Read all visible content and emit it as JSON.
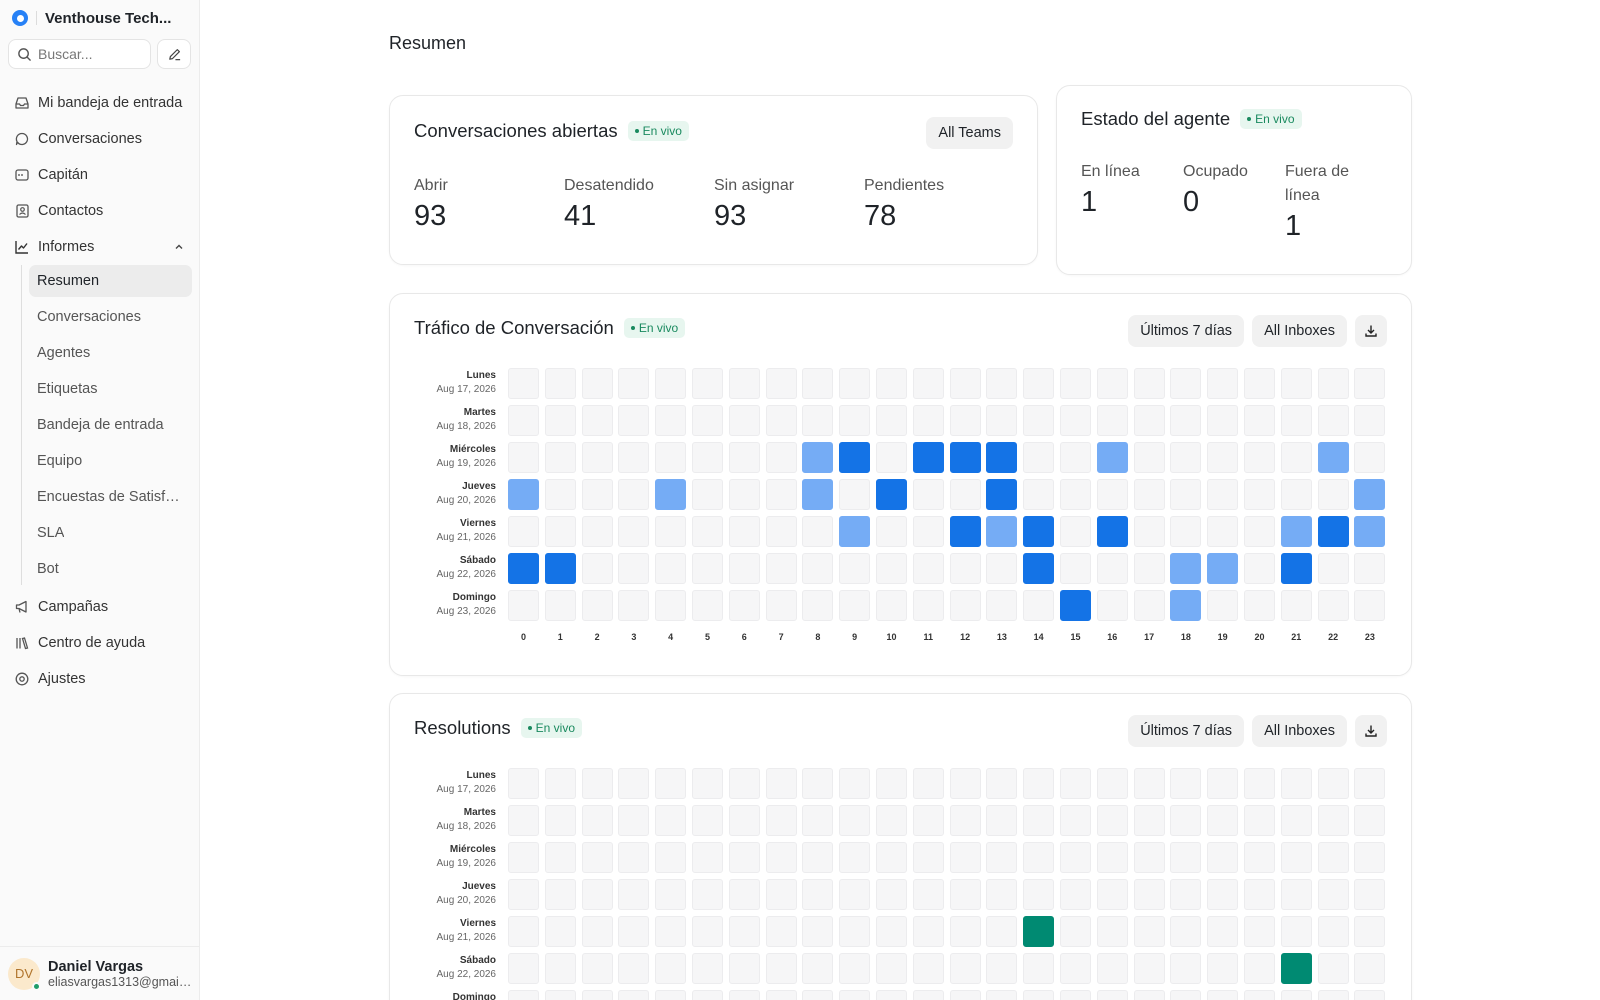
{
  "workspace": {
    "name": "Venthouse Tech..."
  },
  "search": {
    "placeholder": "Buscar..."
  },
  "nav": {
    "items": [
      {
        "label": "Mi bandeja de entrada",
        "icon": "inbox-icon"
      },
      {
        "label": "Conversaciones",
        "icon": "chat-bubble-icon"
      },
      {
        "label": "Capitán",
        "icon": "captain-icon"
      },
      {
        "label": "Contactos",
        "icon": "contact-book-icon"
      },
      {
        "label": "Informes",
        "icon": "chart-line-icon"
      }
    ],
    "reports_sub": [
      "Resumen",
      "Conversaciones",
      "Agentes",
      "Etiquetas",
      "Bandeja de entrada",
      "Equipo",
      "Encuestas de Satisfacción",
      "SLA",
      "Bot"
    ],
    "reports_active": "Resumen",
    "bottom_items": [
      {
        "label": "Campañas",
        "icon": "megaphone-icon"
      },
      {
        "label": "Centro de ayuda",
        "icon": "library-icon"
      },
      {
        "label": "Ajustes",
        "icon": "settings-icon"
      }
    ]
  },
  "profile": {
    "initials": "DV",
    "name": "Daniel Vargas",
    "email": "eliasvargas1313@gmail.com"
  },
  "page": {
    "title": "Resumen"
  },
  "live_label": "En vivo",
  "open_conversations": {
    "title": "Conversaciones abiertas",
    "filter": "All Teams",
    "metrics": [
      {
        "label": "Abrir",
        "value": "93"
      },
      {
        "label": "Desatendido",
        "value": "41"
      },
      {
        "label": "Sin asignar",
        "value": "93"
      },
      {
        "label": "Pendientes",
        "value": "78"
      }
    ]
  },
  "agent_status": {
    "title": "Estado del agente",
    "metrics": [
      {
        "label": "En línea",
        "value": "1"
      },
      {
        "label": "Ocupado",
        "value": "0"
      },
      {
        "label": "Fuera de línea",
        "value": "1"
      }
    ]
  },
  "traffic": {
    "title": "Tráfico de Conversación",
    "range": "Últimos 7 días",
    "inbox": "All Inboxes"
  },
  "resolutions": {
    "title": "Resolutions",
    "range": "Últimos 7 días",
    "inbox": "All Inboxes"
  },
  "colors": {
    "accent": "#2781f6",
    "live_green": "#1a8a5f",
    "traffic_light": "#75acf5",
    "traffic_dark": "#1473e6",
    "resolution_dark": "#008a72",
    "empty_cell": "#f6f6f7"
  },
  "chart_data": [
    {
      "type": "heatmap",
      "title": "Tráfico de Conversación",
      "rows": [
        {
          "day": "Lunes",
          "date": "Aug 17, 2026"
        },
        {
          "day": "Martes",
          "date": "Aug 18, 2026"
        },
        {
          "day": "Miércoles",
          "date": "Aug 19, 2026"
        },
        {
          "day": "Jueves",
          "date": "Aug 20, 2026"
        },
        {
          "day": "Viernes",
          "date": "Aug 21, 2026"
        },
        {
          "day": "Sábado",
          "date": "Aug 22, 2026"
        },
        {
          "day": "Domingo",
          "date": "Aug 23, 2026"
        }
      ],
      "hours": [
        "0",
        "1",
        "2",
        "3",
        "4",
        "5",
        "6",
        "7",
        "8",
        "9",
        "10",
        "11",
        "12",
        "13",
        "14",
        "15",
        "16",
        "17",
        "18",
        "19",
        "20",
        "21",
        "22",
        "23"
      ],
      "levels": [
        [
          0,
          0,
          0,
          0,
          0,
          0,
          0,
          0,
          0,
          0,
          0,
          0,
          0,
          0,
          0,
          0,
          0,
          0,
          0,
          0,
          0,
          0,
          0,
          0
        ],
        [
          0,
          0,
          0,
          0,
          0,
          0,
          0,
          0,
          0,
          0,
          0,
          0,
          0,
          0,
          0,
          0,
          0,
          0,
          0,
          0,
          0,
          0,
          0,
          0
        ],
        [
          0,
          0,
          0,
          0,
          0,
          0,
          0,
          0,
          1,
          2,
          0,
          2,
          2,
          2,
          0,
          0,
          1,
          0,
          0,
          0,
          0,
          0,
          1,
          0
        ],
        [
          1,
          0,
          0,
          0,
          1,
          0,
          0,
          0,
          1,
          0,
          2,
          0,
          0,
          2,
          0,
          0,
          0,
          0,
          0,
          0,
          0,
          0,
          0,
          1
        ],
        [
          0,
          0,
          0,
          0,
          0,
          0,
          0,
          0,
          0,
          1,
          0,
          0,
          2,
          1,
          2,
          0,
          2,
          0,
          0,
          0,
          0,
          1,
          2,
          1
        ],
        [
          2,
          2,
          0,
          0,
          0,
          0,
          0,
          0,
          0,
          0,
          0,
          0,
          0,
          0,
          2,
          0,
          0,
          0,
          1,
          1,
          0,
          2,
          0,
          0
        ],
        [
          0,
          0,
          0,
          0,
          0,
          0,
          0,
          0,
          0,
          0,
          0,
          0,
          0,
          0,
          0,
          2,
          0,
          0,
          1,
          0,
          0,
          0,
          0,
          0
        ]
      ]
    },
    {
      "type": "heatmap",
      "title": "Resolutions",
      "rows": [
        {
          "day": "Lunes",
          "date": "Aug 17, 2026"
        },
        {
          "day": "Martes",
          "date": "Aug 18, 2026"
        },
        {
          "day": "Miércoles",
          "date": "Aug 19, 2026"
        },
        {
          "day": "Jueves",
          "date": "Aug 20, 2026"
        },
        {
          "day": "Viernes",
          "date": "Aug 21, 2026"
        },
        {
          "day": "Sábado",
          "date": "Aug 22, 2026"
        },
        {
          "day": "Domingo",
          "date": ""
        }
      ],
      "hours": [],
      "levels": [
        [
          0,
          0,
          0,
          0,
          0,
          0,
          0,
          0,
          0,
          0,
          0,
          0,
          0,
          0,
          0,
          0,
          0,
          0,
          0,
          0,
          0,
          0,
          0,
          0
        ],
        [
          0,
          0,
          0,
          0,
          0,
          0,
          0,
          0,
          0,
          0,
          0,
          0,
          0,
          0,
          0,
          0,
          0,
          0,
          0,
          0,
          0,
          0,
          0,
          0
        ],
        [
          0,
          0,
          0,
          0,
          0,
          0,
          0,
          0,
          0,
          0,
          0,
          0,
          0,
          0,
          0,
          0,
          0,
          0,
          0,
          0,
          0,
          0,
          0,
          0
        ],
        [
          0,
          0,
          0,
          0,
          0,
          0,
          0,
          0,
          0,
          0,
          0,
          0,
          0,
          0,
          0,
          0,
          0,
          0,
          0,
          0,
          0,
          0,
          0,
          0
        ],
        [
          0,
          0,
          0,
          0,
          0,
          0,
          0,
          0,
          0,
          0,
          0,
          0,
          0,
          0,
          2,
          0,
          0,
          0,
          0,
          0,
          0,
          0,
          0,
          0
        ],
        [
          0,
          0,
          0,
          0,
          0,
          0,
          0,
          0,
          0,
          0,
          0,
          0,
          0,
          0,
          0,
          0,
          0,
          0,
          0,
          0,
          0,
          2,
          0,
          0
        ],
        [
          0,
          0,
          0,
          0,
          0,
          0,
          0,
          0,
          0,
          0,
          0,
          0,
          0,
          0,
          0,
          0,
          0,
          0,
          0,
          0,
          0,
          0,
          0,
          0
        ]
      ]
    }
  ]
}
